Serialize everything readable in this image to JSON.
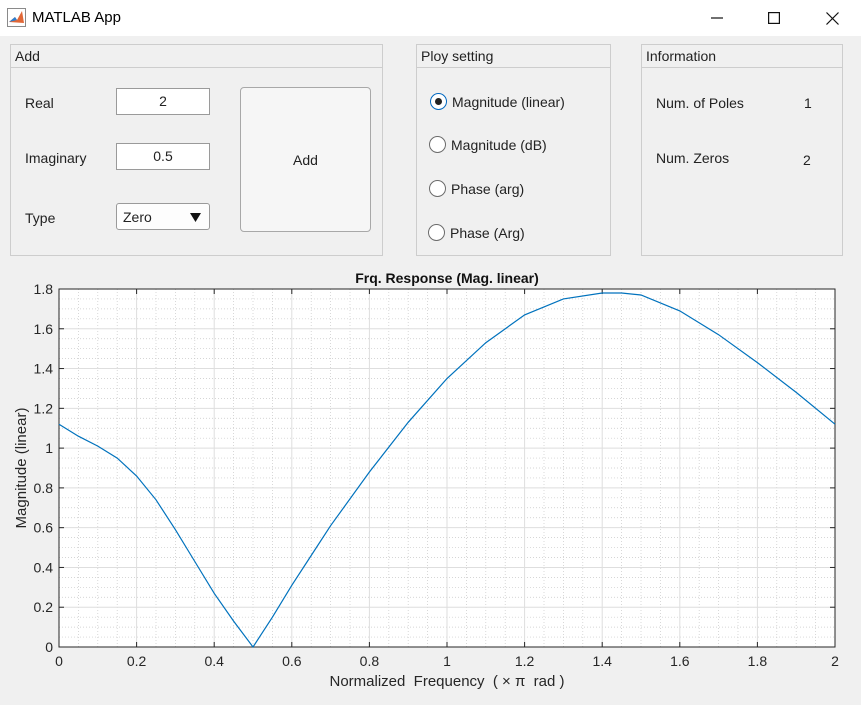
{
  "window": {
    "title": "MATLAB App"
  },
  "add_panel": {
    "title": "Add",
    "real_label": "Real",
    "real_value": "2",
    "imag_label": "Imaginary",
    "imag_value": "0.5",
    "type_label": "Type",
    "type_value": "Zero",
    "add_button": "Add"
  },
  "plot_setting": {
    "title": "Ploy setting",
    "options": [
      {
        "label": "Magnitude (linear)",
        "selected": true
      },
      {
        "label": "Magnitude (dB)",
        "selected": false
      },
      {
        "label": "Phase (arg)",
        "selected": false
      },
      {
        "label": "Phase (Arg)",
        "selected": false
      }
    ]
  },
  "information": {
    "title": "Information",
    "poles_label": "Num. of Poles",
    "poles_value": "1",
    "zeros_label": "Num. Zeros",
    "zeros_value": "2"
  },
  "chart_data": {
    "type": "line",
    "title": "Frq. Response (Mag. linear)",
    "xlabel": "Normalized  Frequency  ( × π  rad )",
    "ylabel": "Magnitude (linear)",
    "xlim": [
      0,
      2
    ],
    "ylim": [
      0,
      1.8
    ],
    "xticks": [
      "0",
      "0.2",
      "0.4",
      "0.6",
      "0.8",
      "1",
      "1.2",
      "1.4",
      "1.6",
      "1.8",
      "2"
    ],
    "yticks": [
      "0",
      "0.2",
      "0.4",
      "0.6",
      "0.8",
      "1",
      "1.2",
      "1.4",
      "1.6",
      "1.8"
    ],
    "grid": true,
    "minor_grid": true,
    "line_color": "#0072bd",
    "series": [
      {
        "x": [
          0,
          0.05,
          0.1,
          0.15,
          0.2,
          0.25,
          0.3,
          0.35,
          0.4,
          0.45,
          0.5,
          0.55,
          0.6,
          0.65,
          0.7,
          0.8,
          0.9,
          1.0,
          1.1,
          1.2,
          1.3,
          1.4,
          1.45,
          1.5,
          1.6,
          1.7,
          1.8,
          1.9,
          2.0
        ],
        "values": [
          1.12,
          1.06,
          1.01,
          0.95,
          0.86,
          0.74,
          0.59,
          0.43,
          0.27,
          0.13,
          0.0,
          0.15,
          0.31,
          0.46,
          0.61,
          0.88,
          1.13,
          1.35,
          1.53,
          1.67,
          1.75,
          1.78,
          1.78,
          1.77,
          1.69,
          1.57,
          1.43,
          1.28,
          1.12
        ]
      }
    ]
  }
}
